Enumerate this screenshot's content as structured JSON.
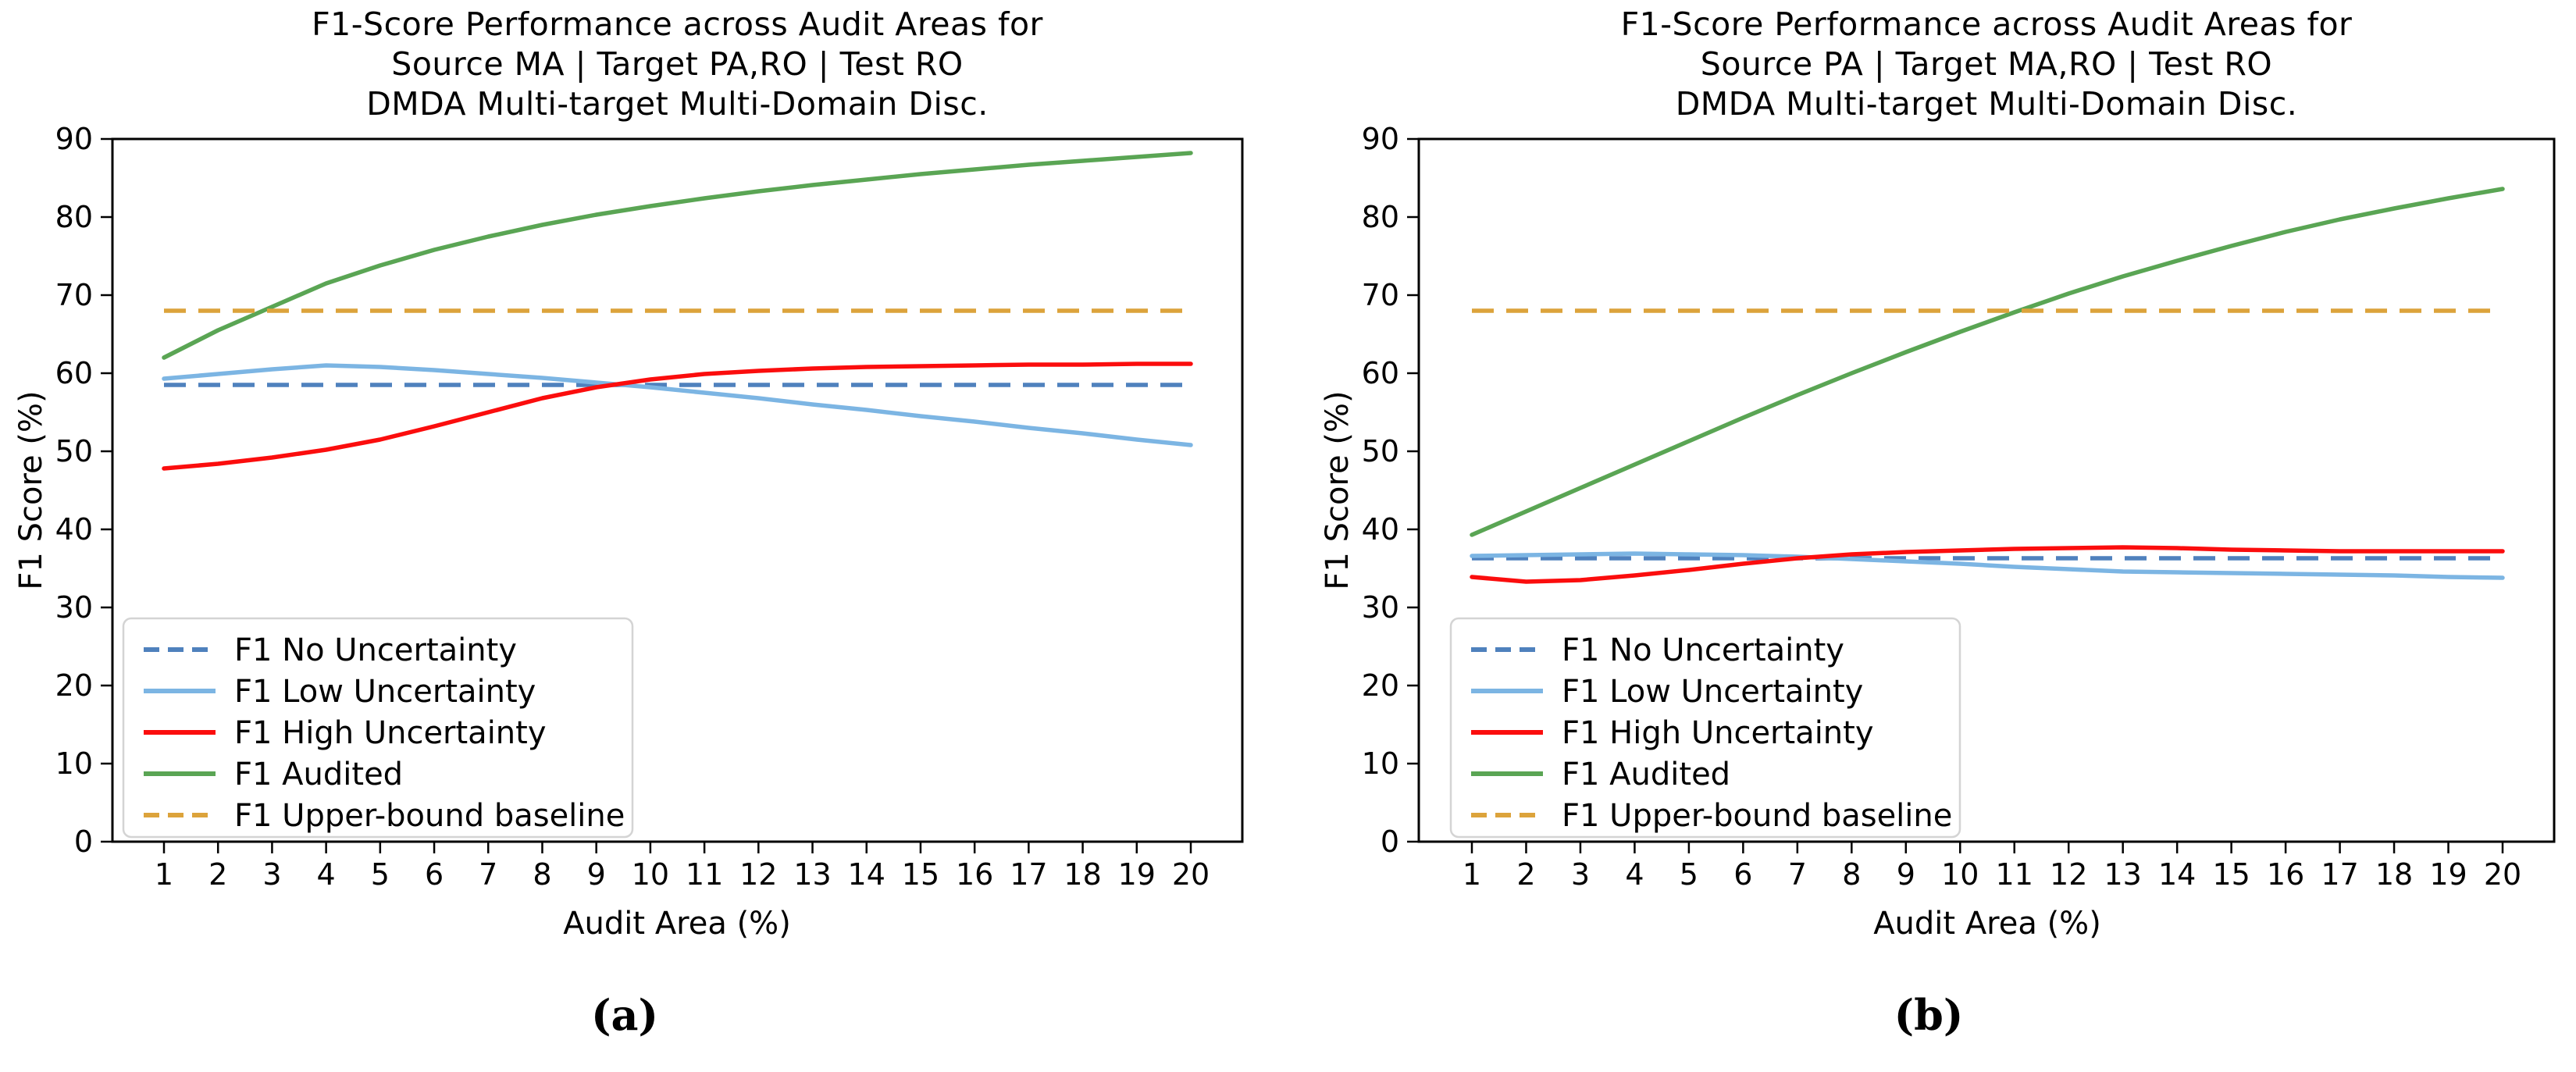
{
  "figure": {
    "captions": {
      "a": "(a)",
      "b": "(b)"
    }
  },
  "chart_data": [
    {
      "type": "line",
      "title_lines": [
        "F1-Score Performance across Audit Areas for",
        "Source MA | Target PA,RO | Test RO",
        "DMDA Multi-target Multi-Domain Disc."
      ],
      "xlabel": "Audit Area (%)",
      "ylabel": "F1 Score (%)",
      "ylim": [
        0,
        90
      ],
      "yticks": [
        0,
        10,
        20,
        30,
        40,
        50,
        60,
        70,
        80,
        90
      ],
      "x": [
        1,
        2,
        3,
        4,
        5,
        6,
        7,
        8,
        9,
        10,
        11,
        12,
        13,
        14,
        15,
        16,
        17,
        18,
        19,
        20
      ],
      "grid": false,
      "legend_position": "lower left",
      "series": [
        {
          "name": "F1 No Uncertainty",
          "color": "#4f81bd",
          "dash": true,
          "values": [
            58.5,
            58.5,
            58.5,
            58.5,
            58.5,
            58.5,
            58.5,
            58.5,
            58.5,
            58.5,
            58.5,
            58.5,
            58.5,
            58.5,
            58.5,
            58.5,
            58.5,
            58.5,
            58.5,
            58.5
          ]
        },
        {
          "name": "F1 Low Uncertainty",
          "color": "#7cb5e3",
          "dash": false,
          "values": [
            59.3,
            59.9,
            60.5,
            61.0,
            60.8,
            60.4,
            59.9,
            59.4,
            58.8,
            58.2,
            57.5,
            56.8,
            56.0,
            55.3,
            54.5,
            53.8,
            53.0,
            52.3,
            51.5,
            50.8
          ]
        },
        {
          "name": "F1 High Uncertainty",
          "color": "#fb0d0d",
          "dash": false,
          "values": [
            47.8,
            48.4,
            49.2,
            50.2,
            51.5,
            53.2,
            55.0,
            56.8,
            58.2,
            59.2,
            59.9,
            60.3,
            60.6,
            60.8,
            60.9,
            61.0,
            61.1,
            61.1,
            61.2,
            61.2
          ]
        },
        {
          "name": "F1 Audited",
          "color": "#5aa554",
          "dash": false,
          "values": [
            62.0,
            65.5,
            68.5,
            71.5,
            73.8,
            75.8,
            77.5,
            79.0,
            80.3,
            81.4,
            82.4,
            83.3,
            84.1,
            84.8,
            85.5,
            86.1,
            86.7,
            87.2,
            87.7,
            88.2
          ]
        },
        {
          "name": "F1 Upper-bound baseline",
          "color": "#dca33b",
          "dash": true,
          "values": [
            68,
            68,
            68,
            68,
            68,
            68,
            68,
            68,
            68,
            68,
            68,
            68,
            68,
            68,
            68,
            68,
            68,
            68,
            68,
            68
          ]
        }
      ]
    },
    {
      "type": "line",
      "title_lines": [
        "F1-Score Performance across Audit Areas for",
        "Source PA | Target MA,RO | Test RO",
        "DMDA Multi-target Multi-Domain Disc."
      ],
      "xlabel": "Audit Area (%)",
      "ylabel": "F1 Score (%)",
      "ylim": [
        0,
        90
      ],
      "yticks": [
        0,
        10,
        20,
        30,
        40,
        50,
        60,
        70,
        80,
        90
      ],
      "x": [
        1,
        2,
        3,
        4,
        5,
        6,
        7,
        8,
        9,
        10,
        11,
        12,
        13,
        14,
        15,
        16,
        17,
        18,
        19,
        20
      ],
      "grid": false,
      "legend_position": "lower left",
      "series": [
        {
          "name": "F1 No Uncertainty",
          "color": "#4f81bd",
          "dash": true,
          "values": [
            36.3,
            36.3,
            36.3,
            36.3,
            36.3,
            36.3,
            36.3,
            36.3,
            36.3,
            36.3,
            36.3,
            36.3,
            36.3,
            36.3,
            36.3,
            36.3,
            36.3,
            36.3,
            36.3,
            36.3
          ]
        },
        {
          "name": "F1 Low Uncertainty",
          "color": "#7cb5e3",
          "dash": false,
          "values": [
            36.6,
            36.7,
            36.8,
            36.9,
            36.8,
            36.7,
            36.5,
            36.2,
            35.9,
            35.6,
            35.2,
            34.9,
            34.6,
            34.5,
            34.4,
            34.3,
            34.2,
            34.1,
            33.9,
            33.8
          ]
        },
        {
          "name": "F1 High Uncertainty",
          "color": "#fb0d0d",
          "dash": false,
          "values": [
            33.9,
            33.3,
            33.5,
            34.1,
            34.8,
            35.6,
            36.3,
            36.8,
            37.1,
            37.3,
            37.5,
            37.6,
            37.7,
            37.6,
            37.4,
            37.3,
            37.2,
            37.2,
            37.2,
            37.2
          ]
        },
        {
          "name": "F1 Audited",
          "color": "#5aa554",
          "dash": false,
          "values": [
            39.3,
            42.3,
            45.3,
            48.3,
            51.3,
            54.3,
            57.2,
            60.0,
            62.7,
            65.3,
            67.8,
            70.2,
            72.4,
            74.4,
            76.3,
            78.1,
            79.7,
            81.1,
            82.4,
            83.6
          ]
        },
        {
          "name": "F1 Upper-bound baseline",
          "color": "#dca33b",
          "dash": true,
          "values": [
            68,
            68,
            68,
            68,
            68,
            68,
            68,
            68,
            68,
            68,
            68,
            68,
            68,
            68,
            68,
            68,
            68,
            68,
            68,
            68
          ]
        }
      ]
    }
  ]
}
